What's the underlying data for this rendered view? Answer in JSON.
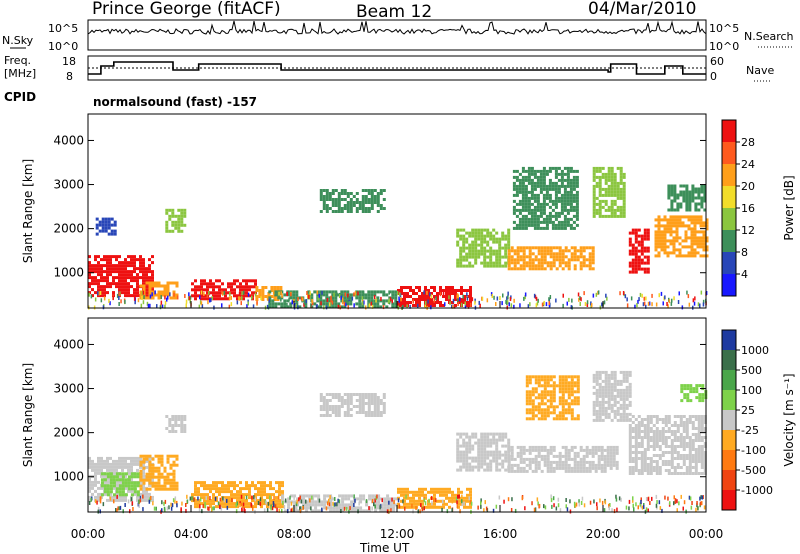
{
  "header": {
    "station": "Prince George (fitACF)",
    "beam": "Beam 12",
    "date": "04/Mar/2010"
  },
  "status_panels": {
    "nsky_label": "N.Sky",
    "nsky_ticks": [
      "10^5",
      "10^0"
    ],
    "nsearch_label": "N.Search",
    "nsearch_ticks": [
      "10^5",
      "10^0"
    ],
    "freq_label": "Freq.",
    "freq_unit": "[MHz]",
    "freq_ticks": [
      "18",
      "8"
    ],
    "nave_label": "Nave",
    "nave_ticks": [
      "60",
      "0"
    ],
    "cpid_label": "CPID",
    "cpid_value": "normalsound (fast) -157"
  },
  "chart_data": [
    {
      "type": "heatmap",
      "name": "power",
      "ylabel": "Slant Range [km]",
      "xlabel": "",
      "yticks": [
        1000,
        2000,
        3000,
        4000
      ],
      "ylim": [
        200,
        4600
      ],
      "xlim_hours": [
        0,
        24
      ],
      "colorbar_label": "Power [dB]",
      "colorbar_ticks": [
        "28",
        "24",
        "20",
        "16",
        "12",
        "8",
        "4"
      ],
      "colorbar_colors": [
        "#ee1111",
        "#ff5a1e",
        "#ff9f1a",
        "#f2dd2a",
        "#8bc63f",
        "#3d8f5a",
        "#2846b8",
        "#1818ff"
      ],
      "echo_regions": [
        {
          "t0": 0.0,
          "t1": 2.5,
          "r0": 500,
          "r1": 1400,
          "level": "#ee1111"
        },
        {
          "t0": 2.0,
          "t1": 3.5,
          "r0": 450,
          "r1": 800,
          "level": "#ff9f1a"
        },
        {
          "t0": 0.3,
          "t1": 1.0,
          "r0": 1900,
          "r1": 2250,
          "level": "#2846b8"
        },
        {
          "t0": 3.0,
          "t1": 3.8,
          "r0": 1950,
          "r1": 2450,
          "level": "#8bc63f"
        },
        {
          "t0": 4.0,
          "t1": 6.5,
          "r0": 400,
          "r1": 850,
          "level": "#ee1111"
        },
        {
          "t0": 6.5,
          "t1": 7.5,
          "r0": 400,
          "r1": 700,
          "level": "#ff9f1a"
        },
        {
          "t0": 7.0,
          "t1": 12.0,
          "r0": 250,
          "r1": 600,
          "level": "#3d8f5a"
        },
        {
          "t0": 9.0,
          "t1": 11.5,
          "r0": 2400,
          "r1": 2900,
          "level": "#3d8f5a"
        },
        {
          "t0": 12.0,
          "t1": 14.8,
          "r0": 280,
          "r1": 700,
          "level": "#ee1111"
        },
        {
          "t0": 14.3,
          "t1": 16.3,
          "r0": 1150,
          "r1": 2000,
          "level": "#8bc63f"
        },
        {
          "t0": 16.3,
          "t1": 19.6,
          "r0": 1100,
          "r1": 1600,
          "level": "#ff9f1a"
        },
        {
          "t0": 16.5,
          "t1": 19.0,
          "r0": 2000,
          "r1": 3400,
          "level": "#3d8f5a"
        },
        {
          "t0": 19.6,
          "t1": 20.8,
          "r0": 2300,
          "r1": 3400,
          "level": "#8bc63f"
        },
        {
          "t0": 21.0,
          "t1": 21.8,
          "r0": 1000,
          "r1": 2000,
          "level": "#ee1111"
        },
        {
          "t0": 22.0,
          "t1": 24.0,
          "r0": 1400,
          "r1": 2300,
          "level": "#ff9f1a"
        },
        {
          "t0": 22.5,
          "t1": 24.0,
          "r0": 2400,
          "r1": 3000,
          "level": "#3d8f5a"
        }
      ]
    },
    {
      "type": "heatmap",
      "name": "velocity",
      "ylabel": "Slant Range [km]",
      "xlabel": "Time UT",
      "yticks": [
        1000,
        2000,
        3000,
        4000
      ],
      "ylim": [
        200,
        4600
      ],
      "xticks": [
        "00:00",
        "04:00",
        "08:00",
        "12:00",
        "16:00",
        "20:00",
        "00:00"
      ],
      "xlim_hours": [
        0,
        24
      ],
      "colorbar_label": "Velocity [m s⁻¹]",
      "colorbar_ticks": [
        "1000",
        "500",
        "100",
        "25",
        "-25",
        "-100",
        "-500",
        "-1000"
      ],
      "colorbar_colors": [
        "#1e3aa0",
        "#3a6f4a",
        "#4aa64a",
        "#7ed24a",
        "#c8c8c8",
        "#ffaa22",
        "#ff7a11",
        "#f04411",
        "#ee1111"
      ],
      "echo_regions": [
        {
          "t0": 0.0,
          "t1": 2.5,
          "r0": 450,
          "r1": 1450,
          "level": "#c8c8c8"
        },
        {
          "t0": 0.5,
          "t1": 2.0,
          "r0": 600,
          "r1": 1100,
          "level": "#7ed24a"
        },
        {
          "t0": 2.0,
          "t1": 3.5,
          "r0": 700,
          "r1": 1500,
          "level": "#ffaa22"
        },
        {
          "t0": 3.0,
          "t1": 3.8,
          "r0": 2000,
          "r1": 2400,
          "level": "#c8c8c8"
        },
        {
          "t0": 4.0,
          "t1": 7.5,
          "r0": 300,
          "r1": 900,
          "level": "#ffaa22"
        },
        {
          "t0": 7.5,
          "t1": 12.0,
          "r0": 250,
          "r1": 600,
          "level": "#c8c8c8"
        },
        {
          "t0": 9.0,
          "t1": 11.5,
          "r0": 2400,
          "r1": 2900,
          "level": "#c8c8c8"
        },
        {
          "t0": 12.0,
          "t1": 14.8,
          "r0": 280,
          "r1": 750,
          "level": "#ffaa22"
        },
        {
          "t0": 14.3,
          "t1": 16.3,
          "r0": 1150,
          "r1": 2000,
          "level": "#c8c8c8"
        },
        {
          "t0": 16.3,
          "t1": 20.5,
          "r0": 1100,
          "r1": 1700,
          "level": "#c8c8c8"
        },
        {
          "t0": 17.0,
          "t1": 19.0,
          "r0": 2300,
          "r1": 3300,
          "level": "#ffaa22"
        },
        {
          "t0": 19.6,
          "t1": 21.0,
          "r0": 2300,
          "r1": 3400,
          "level": "#c8c8c8"
        },
        {
          "t0": 21.0,
          "t1": 24.0,
          "r0": 1100,
          "r1": 2400,
          "level": "#c8c8c8"
        },
        {
          "t0": 23.0,
          "t1": 24.0,
          "r0": 2700,
          "r1": 3100,
          "level": "#7ed24a"
        }
      ]
    }
  ]
}
